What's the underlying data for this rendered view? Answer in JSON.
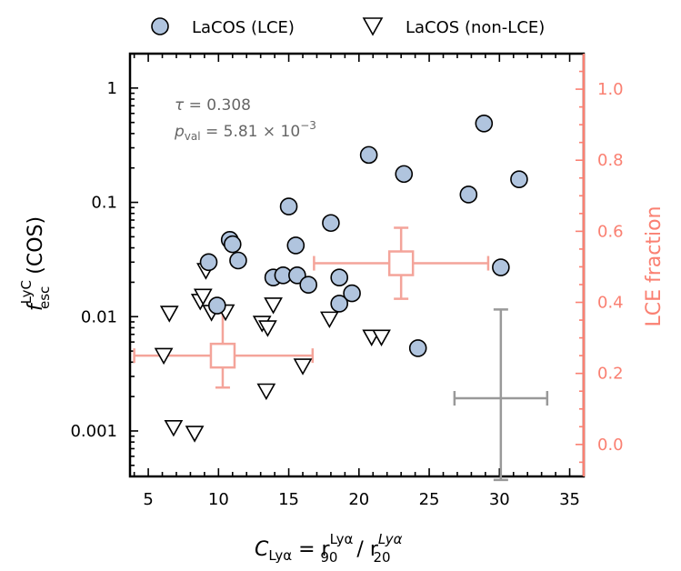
{
  "chart_data": {
    "type": "scatter",
    "legend": {
      "placement": "top",
      "entries": [
        {
          "name": "LaCOS (LCE)",
          "marker": "circle"
        },
        {
          "name": "LaCOS (non-LCE)",
          "marker": "triangle-down"
        }
      ]
    },
    "annotation": {
      "line1_sym": "τ",
      "line1_val": " = 0.308",
      "line2_p": "p",
      "line2_sub": "val",
      "line2_val": " = 5.81 × 10",
      "line2_exp": "−3"
    },
    "xaxis": {
      "label_C": "C",
      "label_Csub": "Lyα",
      "label_eq": " = r",
      "label_sup1": "Lyα",
      "label_sub1": "90",
      "label_slash": " / r",
      "label_sup2": "Lyα",
      "label_sub2": "20",
      "range": [
        3.7,
        36.0
      ],
      "ticks": [
        5,
        10,
        15,
        20,
        25,
        30,
        35
      ],
      "tick_labels": [
        "5",
        "10",
        "15",
        "20",
        "25",
        "30",
        "35"
      ]
    },
    "yaxis_left": {
      "label_f": "f",
      "label_sup": "LyC",
      "label_sub": "esc",
      "label_rest": " (COS)",
      "scale": "log",
      "range": [
        0.0004,
        2.0
      ],
      "ticks": [
        0.001,
        0.01,
        0.1,
        1
      ],
      "tick_labels": [
        "0.001",
        "0.01",
        "0.1",
        "1"
      ]
    },
    "yaxis_right": {
      "label": "LCE fraction",
      "range": [
        -0.09,
        1.1
      ],
      "ticks": [
        0.0,
        0.2,
        0.4,
        0.6,
        0.8,
        1.0
      ],
      "tick_labels": [
        "0.0",
        "0.2",
        "0.4",
        "0.6",
        "0.8",
        "1.0"
      ]
    },
    "series": [
      {
        "name": "LaCOS (LCE)",
        "marker": "circle",
        "x": [
          9.3,
          9.9,
          10.8,
          11.0,
          11.4,
          13.9,
          14.6,
          15.0,
          15.5,
          15.6,
          16.4,
          18.0,
          18.6,
          18.6,
          19.5,
          20.7,
          23.2,
          24.2,
          27.8,
          28.9,
          30.1,
          31.4
        ],
        "y": [
          0.03,
          0.0125,
          0.047,
          0.043,
          0.031,
          0.022,
          0.023,
          0.092,
          0.042,
          0.023,
          0.019,
          0.066,
          0.022,
          0.013,
          0.016,
          0.26,
          0.177,
          0.0053,
          0.117,
          0.49,
          0.027,
          0.159
        ]
      },
      {
        "name": "LaCOS (non-LCE)",
        "marker": "triangle-down",
        "x": [
          6.1,
          6.5,
          6.8,
          8.3,
          8.7,
          8.9,
          9.1,
          9.5,
          10.5,
          13.1,
          13.4,
          13.5,
          13.9,
          16.0,
          17.9,
          20.9,
          21.6
        ],
        "y": [
          0.0047,
          0.011,
          0.0011,
          0.00098,
          0.014,
          0.0155,
          0.026,
          0.0112,
          0.0113,
          0.009,
          0.0023,
          0.0082,
          0.013,
          0.0038,
          0.0098,
          0.0068,
          0.0068
        ]
      }
    ],
    "binned_fraction": [
      {
        "x": 10.3,
        "xerr": [
          6.3,
          6.4
        ],
        "y": 0.25,
        "yerr": [
          0.09,
          0.12
        ]
      },
      {
        "x": 23.0,
        "xerr": [
          6.2,
          6.2
        ],
        "y": 0.51,
        "yerr": [
          0.1,
          0.1
        ]
      }
    ],
    "typical_error": {
      "x": 30.1,
      "xerr": [
        3.3,
        3.3
      ],
      "y": 0.13,
      "yerr": [
        0.23,
        0.25
      ]
    },
    "colors": {
      "lce_fill": "#b0c4de",
      "marker_edge": "#000000",
      "fraction": "#f4a49a",
      "right_axis": "#fa8072",
      "error_bar": "#999999",
      "annotation_text": "#666666"
    }
  }
}
